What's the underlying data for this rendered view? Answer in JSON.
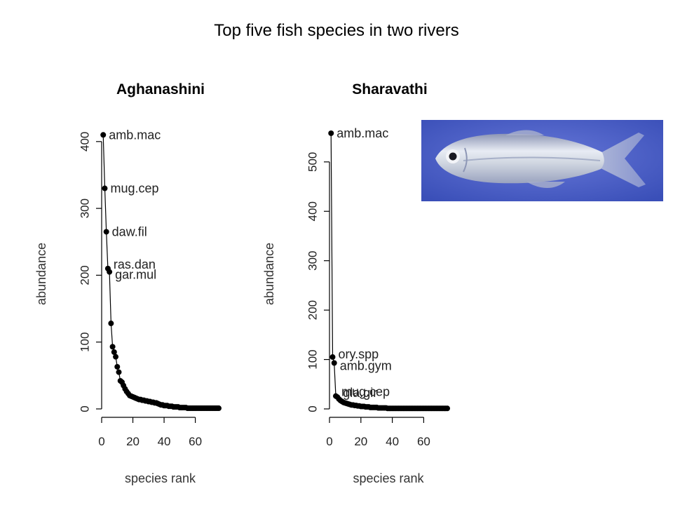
{
  "page_title": "Top five fish species in two rivers",
  "photo": {
    "icon": "fish-photo",
    "background_color": "#4a5fc6"
  },
  "chart_data": [
    {
      "type": "scatter",
      "title": "Aghanashini",
      "xlabel": "species rank",
      "ylabel": "abundance",
      "xlim": [
        0,
        75
      ],
      "ylim": [
        0,
        425
      ],
      "xticks": [
        0,
        20,
        40,
        60
      ],
      "yticks": [
        0,
        100,
        200,
        300,
        400
      ],
      "x": [
        1,
        2,
        3,
        4,
        5,
        6,
        7,
        8,
        9,
        10,
        11,
        12,
        13,
        14,
        15,
        16,
        17,
        18,
        19,
        20,
        21,
        22,
        23,
        24,
        25,
        26,
        27,
        28,
        29,
        30,
        31,
        32,
        33,
        34,
        35,
        36,
        37,
        38,
        39,
        40,
        41,
        42,
        43,
        44,
        45,
        46,
        47,
        48,
        49,
        50,
        51,
        52,
        53,
        54,
        55,
        56,
        57,
        58,
        59,
        60,
        61,
        62,
        63,
        64,
        65,
        66,
        67,
        68,
        69,
        70,
        71,
        72,
        73,
        74,
        75
      ],
      "y": [
        410,
        330,
        265,
        210,
        205,
        128,
        93,
        85,
        78,
        63,
        55,
        42,
        40,
        35,
        30,
        26,
        23,
        20,
        19,
        18,
        17,
        16,
        15,
        14,
        14,
        13,
        13,
        12,
        12,
        11,
        11,
        10,
        10,
        9,
        9,
        8,
        7,
        6,
        6,
        5,
        5,
        5,
        4,
        4,
        4,
        3,
        3,
        3,
        3,
        2,
        2,
        2,
        2,
        2,
        1,
        1,
        1,
        1,
        1,
        1,
        1,
        1,
        1,
        1,
        1,
        1,
        1,
        1,
        1,
        1,
        1,
        1,
        1,
        1,
        1
      ],
      "annotations": [
        {
          "label": "amb.mac",
          "x": 1,
          "y": 410
        },
        {
          "label": "mug.cep",
          "x": 2,
          "y": 330
        },
        {
          "label": "daw.fil",
          "x": 3,
          "y": 265
        },
        {
          "label": "ras.dan",
          "x": 4,
          "y": 210
        },
        {
          "label": "gar.mul",
          "x": 5,
          "y": 205
        }
      ]
    },
    {
      "type": "scatter",
      "title": "Sharavathi",
      "xlabel": "species rank",
      "ylabel": "abundance",
      "xlim": [
        0,
        75
      ],
      "ylim": [
        0,
        575
      ],
      "xticks": [
        0,
        20,
        40,
        60
      ],
      "yticks": [
        0,
        100,
        200,
        300,
        400,
        500
      ],
      "x": [
        1,
        2,
        3,
        4,
        5,
        6,
        7,
        8,
        9,
        10,
        11,
        12,
        13,
        14,
        15,
        16,
        17,
        18,
        19,
        20,
        21,
        22,
        23,
        24,
        25,
        26,
        27,
        28,
        29,
        30,
        31,
        32,
        33,
        34,
        35,
        36,
        37,
        38,
        39,
        40,
        41,
        42,
        43,
        44,
        45,
        46,
        47,
        48,
        49,
        50,
        51,
        52,
        53,
        54,
        55,
        56,
        57,
        58,
        59,
        60,
        61,
        62,
        63,
        64,
        65,
        66,
        67,
        68,
        69,
        70,
        71,
        72,
        73,
        74,
        75
      ],
      "y": [
        558,
        105,
        93,
        26,
        24,
        20,
        17,
        15,
        13,
        12,
        11,
        10,
        9,
        8,
        8,
        7,
        7,
        6,
        6,
        5,
        5,
        5,
        4,
        4,
        4,
        3,
        3,
        3,
        3,
        3,
        2,
        2,
        2,
        2,
        2,
        2,
        1,
        1,
        1,
        1,
        1,
        1,
        1,
        1,
        1,
        1,
        1,
        1,
        1,
        1,
        1,
        1,
        1,
        1,
        1,
        1,
        1,
        1,
        1,
        1,
        1,
        1,
        1,
        1,
        1,
        1,
        1,
        1,
        1,
        1,
        1,
        1,
        1,
        1,
        1
      ],
      "annotations": [
        {
          "label": "amb.mac",
          "x": 1,
          "y": 558
        },
        {
          "label": "ory.spp",
          "x": 2,
          "y": 105
        },
        {
          "label": "amb.gym",
          "x": 3,
          "y": 93
        },
        {
          "label": "mug.cep",
          "x": 4,
          "y": 26
        },
        {
          "label": "gla.gir",
          "x": 5,
          "y": 24
        }
      ]
    }
  ]
}
